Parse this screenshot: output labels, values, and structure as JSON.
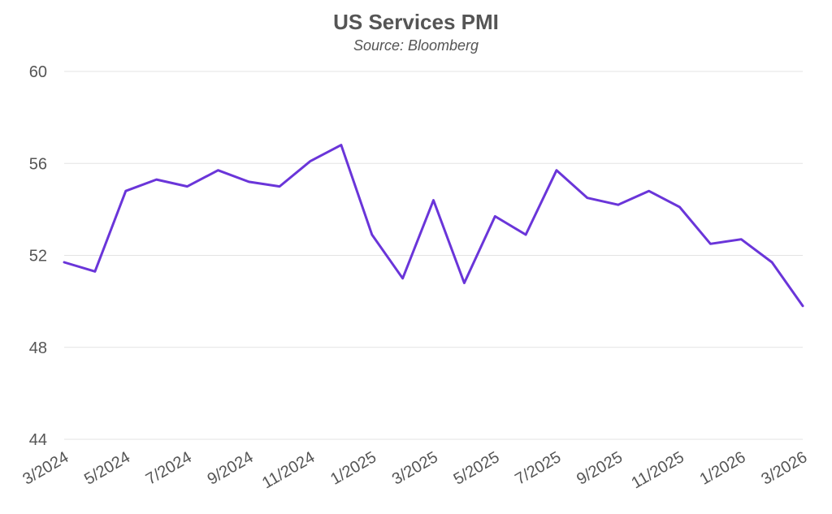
{
  "chart_data": {
    "type": "line",
    "title": "US Services PMI",
    "subtitle": "Source: Bloomberg",
    "xlabel": "",
    "ylabel": "",
    "ylim": [
      44,
      60
    ],
    "yticks": [
      44,
      48,
      52,
      56,
      60
    ],
    "grid": true,
    "legend": "none",
    "x": [
      "3/2024",
      "4/2024",
      "5/2024",
      "6/2024",
      "7/2024",
      "8/2024",
      "9/2024",
      "10/2024",
      "11/2024",
      "12/2024",
      "1/2025",
      "2/2025",
      "3/2025",
      "4/2025",
      "5/2025",
      "6/2025",
      "7/2025",
      "8/2025",
      "9/2025",
      "10/2025",
      "11/2025",
      "12/2025",
      "1/2026",
      "2/2026",
      "3/2026"
    ],
    "xtick_labels": [
      "3/2024",
      "5/2024",
      "7/2024",
      "9/2024",
      "11/2024",
      "1/2025",
      "3/2025",
      "5/2025",
      "7/2025",
      "9/2025",
      "11/2025",
      "1/2026",
      "3/2026"
    ],
    "series": [
      {
        "color": "#6a35d9",
        "values": [
          51.7,
          51.3,
          54.8,
          55.3,
          55.0,
          55.7,
          55.2,
          55.0,
          56.1,
          56.8,
          52.9,
          51.0,
          54.4,
          50.8,
          53.7,
          52.9,
          55.7,
          54.5,
          54.2,
          54.8,
          54.1,
          52.5,
          52.7,
          51.7,
          49.8
        ]
      }
    ]
  }
}
